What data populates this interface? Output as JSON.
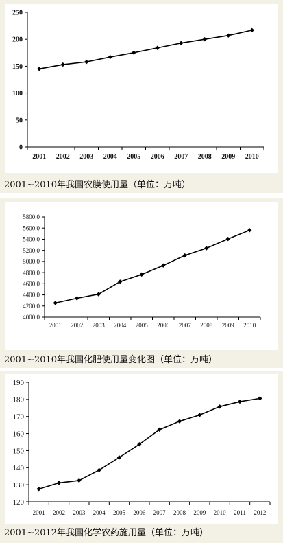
{
  "colors": {
    "panel_bg": "#f3f1e6",
    "plot_bg": "#ffffff",
    "line": "#000000"
  },
  "chart_data": [
    {
      "type": "line",
      "caption": "2001~2010年我国农膜使用量（单位：万吨）",
      "x": [
        "2001",
        "2002",
        "2003",
        "2004",
        "2005",
        "2006",
        "2007",
        "2008",
        "2009",
        "2010"
      ],
      "series": [
        {
          "values": [
            145,
            153,
            158,
            167,
            175,
            184,
            193,
            200,
            207,
            217
          ]
        }
      ],
      "ylim": [
        0,
        250
      ],
      "yticks": [
        0,
        50,
        100,
        150,
        200,
        250
      ],
      "ytick_labels": [
        "0",
        "50",
        "100",
        "150",
        "200",
        "250"
      ],
      "grid": false
    },
    {
      "type": "line",
      "caption": "2001~2010年我国化肥使用量变化图（单位：万吨）",
      "x": [
        "2001",
        "2002",
        "2003",
        "2004",
        "2005",
        "2006",
        "2007",
        "2008",
        "2009",
        "2010"
      ],
      "series": [
        {
          "values": [
            4254,
            4339,
            4412,
            4637,
            4766,
            4928,
            5108,
            5239,
            5404,
            5562
          ]
        }
      ],
      "ylim": [
        4000,
        5800
      ],
      "yticks": [
        4000,
        4200,
        4400,
        4600,
        4800,
        5000,
        5200,
        5400,
        5600,
        5800
      ],
      "ytick_labels": [
        "4000.0",
        "4200.0",
        "4400.0",
        "4600.0",
        "4800.0",
        "5000.0",
        "5200.0",
        "5400.0",
        "5600.0",
        "5800.0"
      ],
      "grid": false
    },
    {
      "type": "line",
      "caption": "2001~2012年我国化学农药施用量（单位：万吨）",
      "x": [
        "2001",
        "2002",
        "2003",
        "2004",
        "2005",
        "2006",
        "2007",
        "2008",
        "2009",
        "2010",
        "2011",
        "2012"
      ],
      "series": [
        {
          "values": [
            127.5,
            131.1,
            132.5,
            138.6,
            146.0,
            153.7,
            162.3,
            167.2,
            170.9,
            175.8,
            178.7,
            180.6
          ]
        }
      ],
      "ylim": [
        120,
        190
      ],
      "yticks": [
        120,
        130,
        140,
        150,
        160,
        170,
        180,
        190
      ],
      "ytick_labels": [
        "120",
        "130",
        "140",
        "150",
        "160",
        "170",
        "180",
        "190"
      ],
      "grid": false
    }
  ]
}
